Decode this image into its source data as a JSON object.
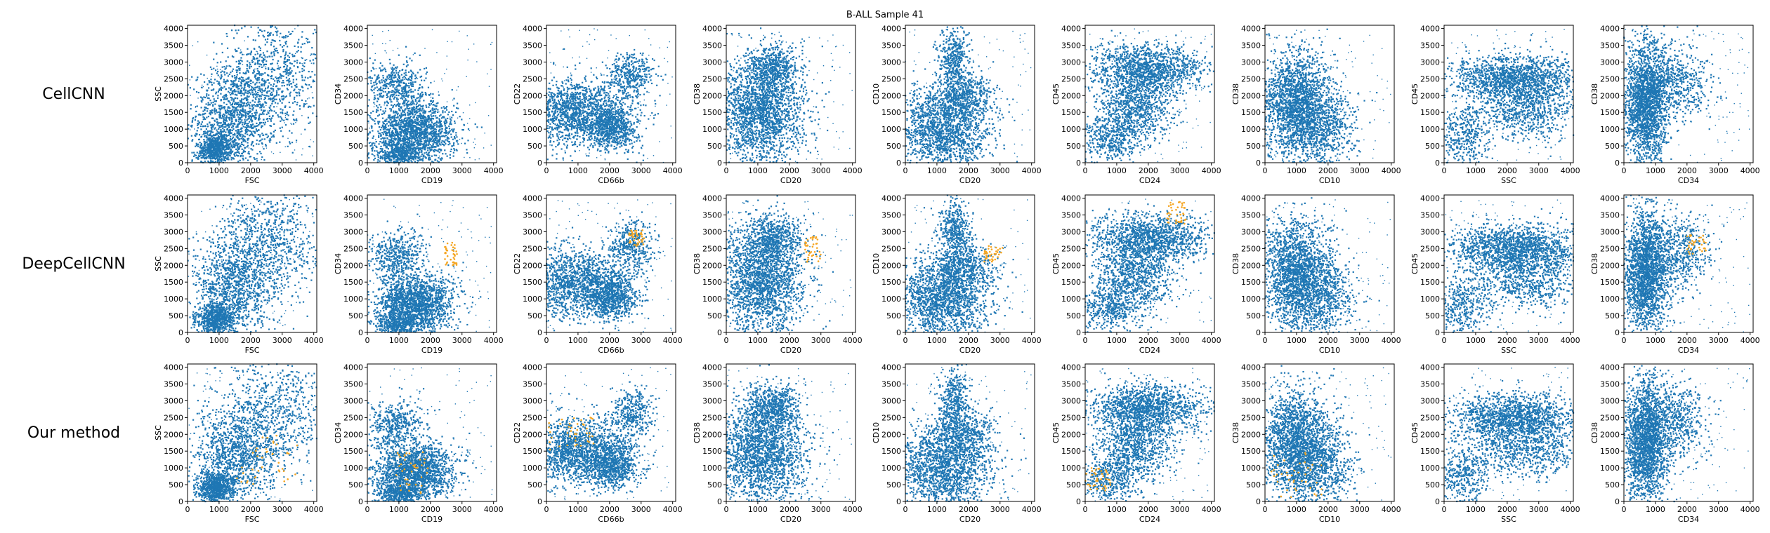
{
  "figure": {
    "title": "B-ALL Sample 41",
    "row_labels": [
      "CellCNN",
      "DeepCellCNN",
      "Our method"
    ],
    "colors": {
      "points": "#1f77b4",
      "highlight": "#f5a623",
      "axes": "#000000",
      "background": "#ffffff"
    }
  },
  "chart_data": {
    "type": "scatter",
    "title": "B-ALL Sample 41",
    "rows": [
      "CellCNN",
      "DeepCellCNN",
      "Our method"
    ],
    "xlim": [
      0,
      4096
    ],
    "ylim": [
      0,
      4096
    ],
    "xticks": [
      0,
      1000,
      2000,
      3000,
      4000
    ],
    "yticks": [
      0,
      500,
      1000,
      1500,
      2000,
      2500,
      3000,
      3500,
      4000
    ],
    "tick_labels_x": [
      "0",
      "1000",
      "2000",
      "3000",
      "4000"
    ],
    "tick_labels_y": [
      "0",
      "500",
      "1000",
      "1500",
      "2000",
      "2500",
      "3000",
      "3500",
      "4000"
    ],
    "panels": [
      {
        "x": "FSC",
        "y": "SSC"
      },
      {
        "x": "CD19",
        "y": "CD34"
      },
      {
        "x": "CD66b",
        "y": "CD22"
      },
      {
        "x": "CD20",
        "y": "CD38"
      },
      {
        "x": "CD20",
        "y": "CD10"
      },
      {
        "x": "CD24",
        "y": "CD45"
      },
      {
        "x": "CD10",
        "y": "CD38"
      },
      {
        "x": "SSC",
        "y": "CD45"
      },
      {
        "x": "CD34",
        "y": "CD38"
      }
    ],
    "highlight_regions": [
      {
        "row": "DeepCellCNN",
        "panel": 1,
        "x": [
          2450,
          2850
        ],
        "y": [
          2000,
          2700
        ]
      },
      {
        "row": "DeepCellCNN",
        "panel": 2,
        "x": [
          2600,
          3100
        ],
        "y": [
          2550,
          3050
        ]
      },
      {
        "row": "DeepCellCNN",
        "panel": 3,
        "x": [
          2500,
          3000
        ],
        "y": [
          2100,
          2900
        ]
      },
      {
        "row": "DeepCellCNN",
        "panel": 4,
        "x": [
          2500,
          3100
        ],
        "y": [
          2100,
          2600
        ]
      },
      {
        "row": "DeepCellCNN",
        "panel": 5,
        "x": [
          2600,
          3200
        ],
        "y": [
          3200,
          3900
        ]
      },
      {
        "row": "DeepCellCNN",
        "panel": 8,
        "x": [
          2000,
          2600
        ],
        "y": [
          2300,
          2900
        ]
      },
      {
        "row": "Our method",
        "panel": 0,
        "x": [
          1500,
          3500
        ],
        "y": [
          500,
          2000
        ]
      },
      {
        "row": "Our method",
        "panel": 1,
        "x": [
          900,
          2000
        ],
        "y": [
          200,
          1500
        ]
      },
      {
        "row": "Our method",
        "panel": 2,
        "x": [
          0,
          1500
        ],
        "y": [
          1500,
          2500
        ]
      },
      {
        "row": "Our method",
        "panel": 5,
        "x": [
          0,
          800
        ],
        "y": [
          300,
          1000
        ]
      },
      {
        "row": "Our method",
        "panel": 6,
        "x": [
          200,
          1800
        ],
        "y": [
          100,
          1500
        ]
      }
    ],
    "legend": "none",
    "grid": false
  }
}
